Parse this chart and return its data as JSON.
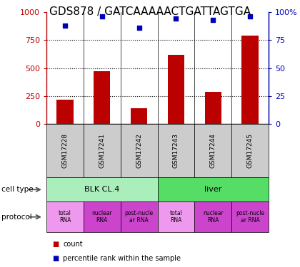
{
  "title": "GDS878 / GATCAAAAACTGATTAGTGA",
  "samples": [
    "GSM17228",
    "GSM17241",
    "GSM17242",
    "GSM17243",
    "GSM17244",
    "GSM17245"
  ],
  "counts": [
    220,
    475,
    145,
    620,
    285,
    790
  ],
  "percentiles": [
    88,
    96,
    86,
    94,
    93,
    96
  ],
  "ylim_left": [
    0,
    1000
  ],
  "ylim_right": [
    0,
    100
  ],
  "yticks_left": [
    0,
    250,
    500,
    750,
    1000
  ],
  "yticks_right": [
    0,
    25,
    50,
    75,
    100
  ],
  "bar_color": "#bb0000",
  "dot_color": "#0000bb",
  "cell_type_groups": [
    {
      "label": "BLK CL.4",
      "color": "#aaeebb",
      "start": 0,
      "end": 3
    },
    {
      "label": "liver",
      "color": "#55dd66",
      "start": 3,
      "end": 6
    }
  ],
  "proto_labels": [
    "total\nRNA",
    "nuclear\nRNA",
    "post-nucle\nar RNA",
    "total\nRNA",
    "nuclear\nRNA",
    "post-nucle\nar RNA"
  ],
  "proto_colors": [
    "#ee99ee",
    "#cc44cc",
    "#cc44cc",
    "#ee99ee",
    "#cc44cc",
    "#cc44cc"
  ],
  "legend_count_color": "#bb0000",
  "legend_dot_color": "#0000bb",
  "title_fontsize": 11,
  "tick_fontsize": 8,
  "sample_fontsize": 6.5,
  "celltype_fontsize": 8,
  "proto_fontsize": 5.5,
  "label_fontsize": 7.5,
  "legend_fontsize": 7
}
